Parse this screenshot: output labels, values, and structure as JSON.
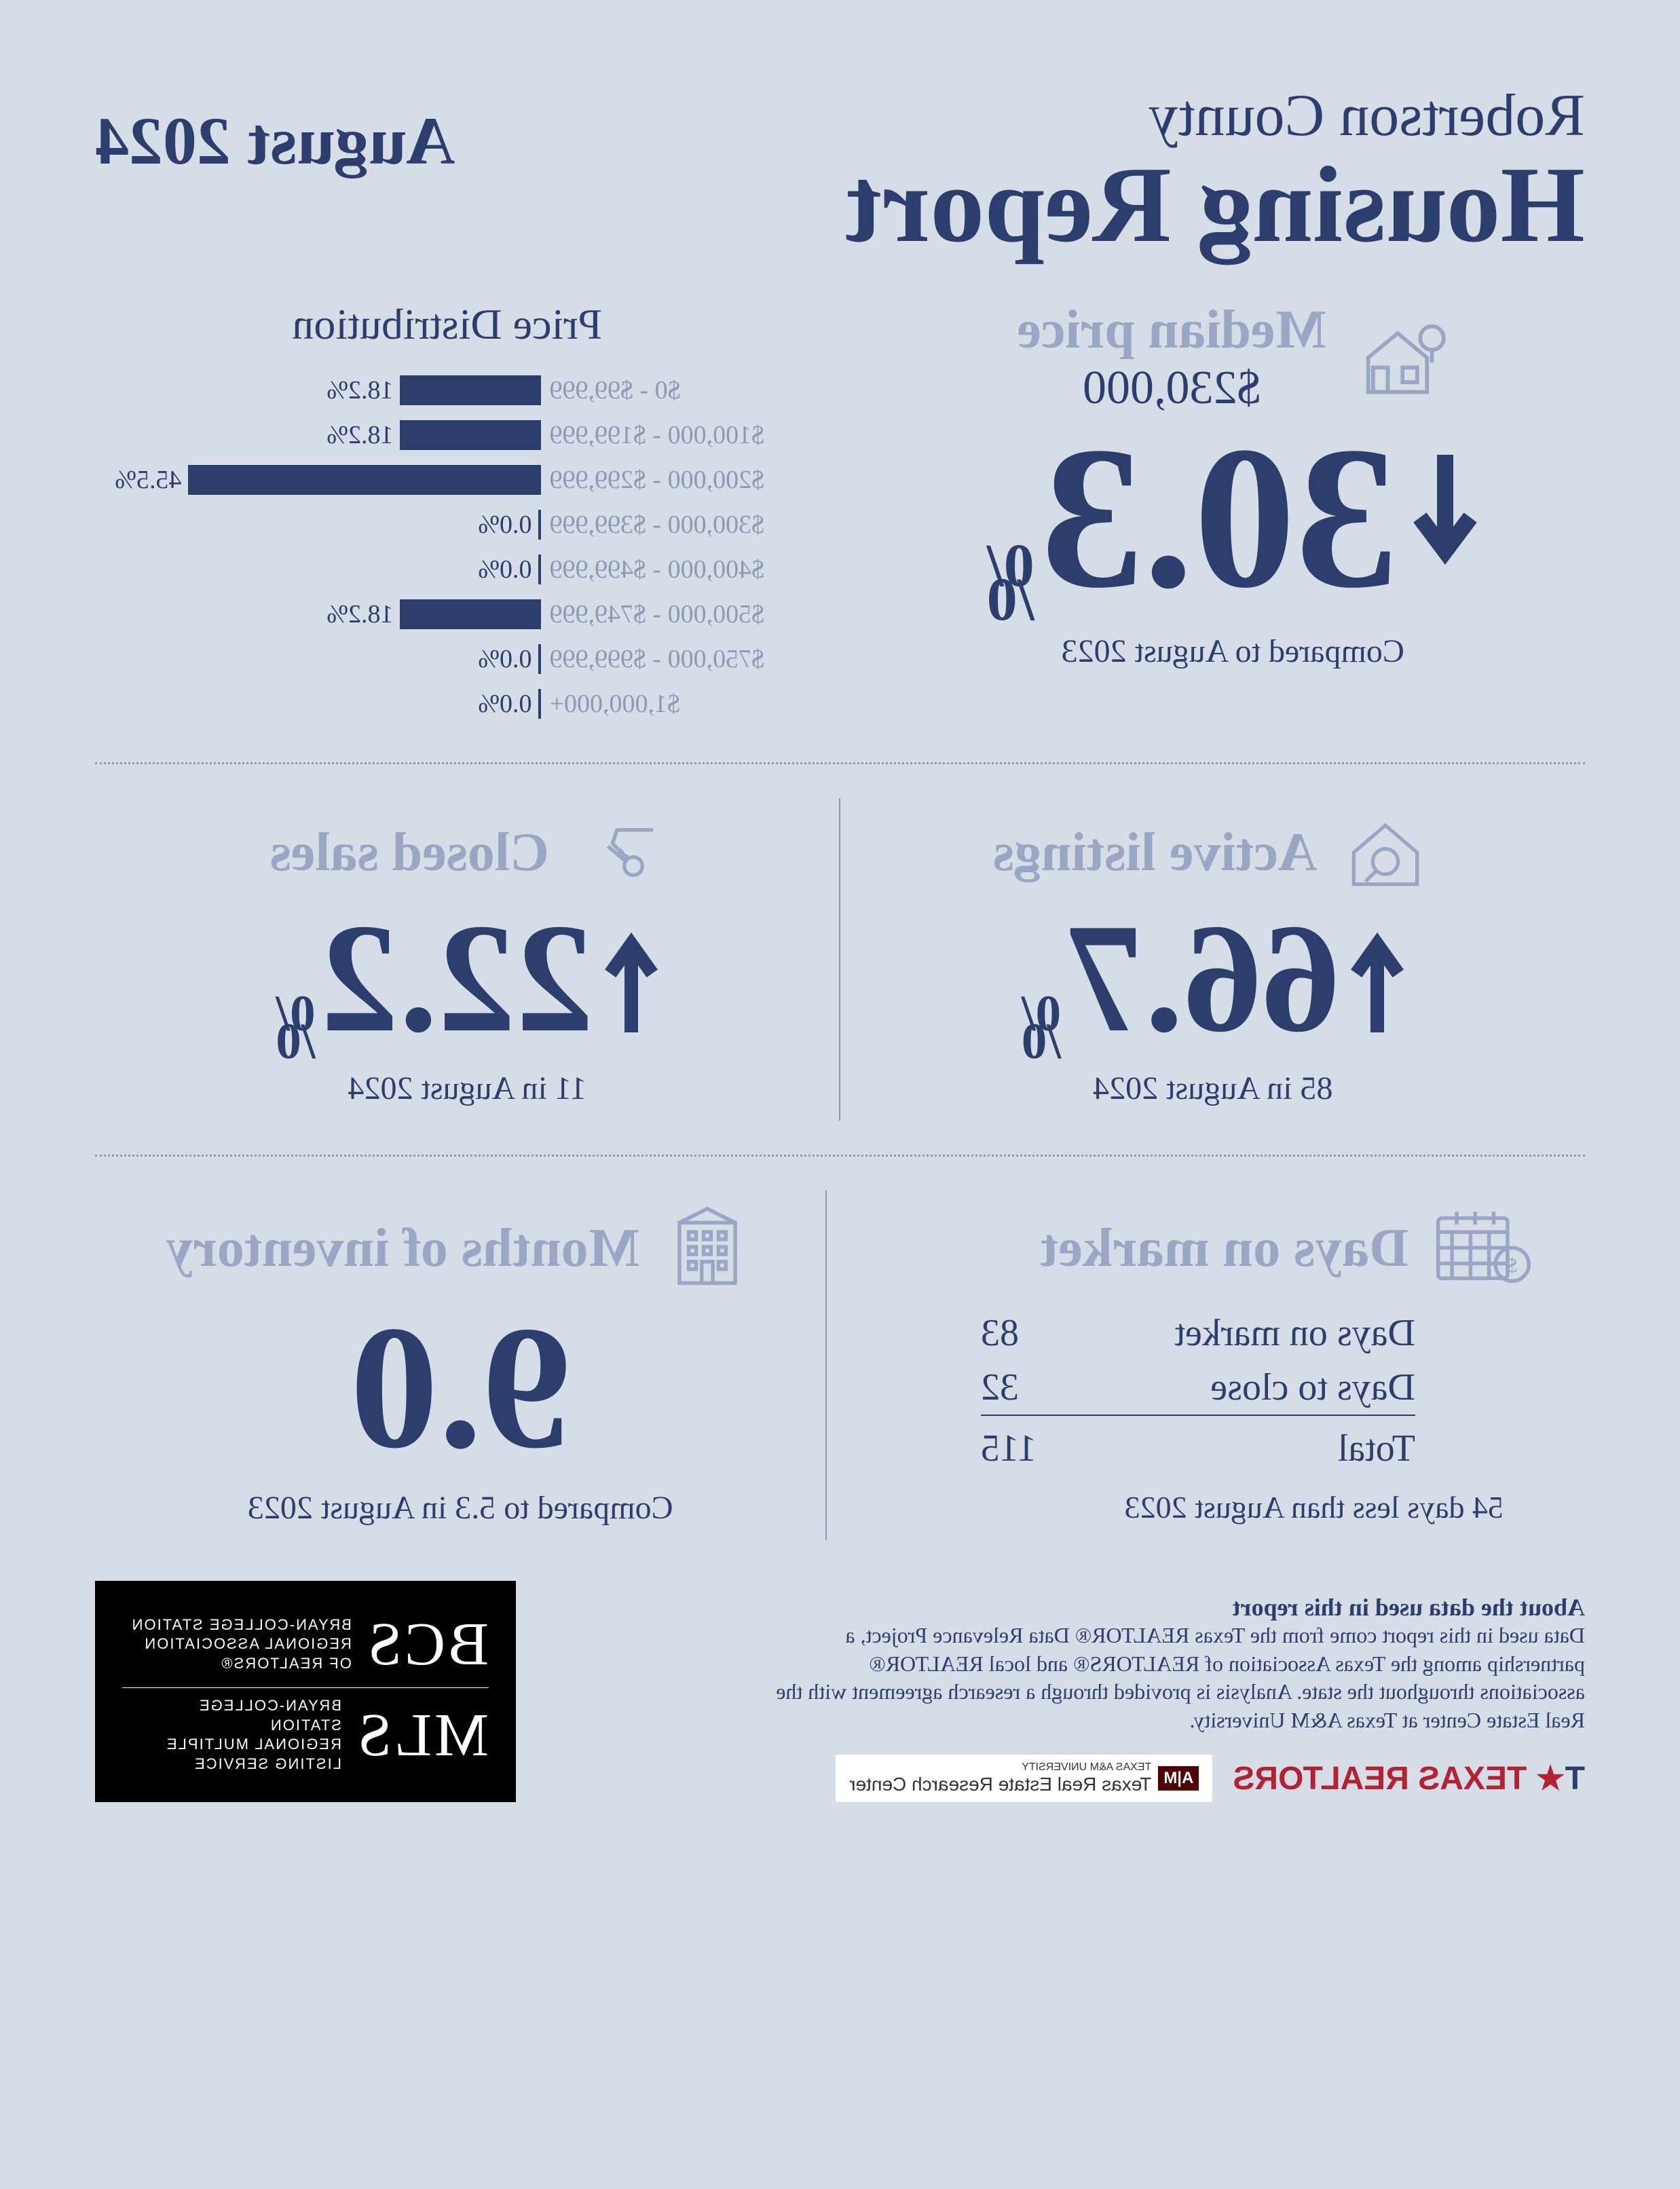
{
  "header": {
    "county": "Robertson County",
    "title": "Housing Report",
    "date": "August 2024"
  },
  "median": {
    "title": "Median price",
    "value": "$230,000",
    "arrow": "down",
    "pct": "30.3",
    "compared": "Compared to August 2023",
    "icon_color": "#9aa7c4"
  },
  "price_distribution": {
    "title": "Price Distribution",
    "bar_color": "#2c3e6e",
    "label_color": "#8c9ab8",
    "value_color": "#2c3e6e",
    "max_pct": 45.5,
    "rows": [
      {
        "label": "$0 - $99,999",
        "pct": 18.2,
        "text": "18.2%"
      },
      {
        "label": "$100,000 - $199,999",
        "pct": 18.2,
        "text": "18.2%"
      },
      {
        "label": "$200,000 - $299,999",
        "pct": 45.5,
        "text": "45.5%"
      },
      {
        "label": "$300,000 - $399,999",
        "pct": 0.0,
        "text": "0.0%"
      },
      {
        "label": "$400,000 - $499,999",
        "pct": 0.0,
        "text": "0.0%"
      },
      {
        "label": "$500,000 - $749,999",
        "pct": 18.2,
        "text": "18.2%"
      },
      {
        "label": "$750,000 - $999,999",
        "pct": 0.0,
        "text": "0.0%"
      },
      {
        "label": "$1,000,000+",
        "pct": 0.0,
        "text": "0.0%"
      }
    ]
  },
  "active_listings": {
    "title": "Active listings",
    "arrow": "up",
    "pct": "66.7",
    "note": "85 in August 2024"
  },
  "closed_sales": {
    "title": "Closed sales",
    "arrow": "up",
    "pct": "22.2",
    "note": "11 in August 2024"
  },
  "days_on_market": {
    "title": "Days on market",
    "rows": [
      {
        "label": "Days on market",
        "val": "83"
      },
      {
        "label": "Days to close",
        "val": "32"
      }
    ],
    "total_label": "Total",
    "total_val": "115",
    "note": "54 days less than August 2023"
  },
  "months_inventory": {
    "title": "Months of inventory",
    "val": "9.0",
    "note": "Compared to 5.3 in August 2023"
  },
  "footer": {
    "about_title": "About the data used in this report",
    "about_body": "Data used in this report come from the Texas REALTOR® Data Relevance Project, a partnership among the Texas Association of REALTORS® and local REALTOR® associations throughout the state. Analysis is provided through a research agreement with the Real Estate Center at Texas A&M University.",
    "tr_logo": "TEXAS REALTORS",
    "trerc_top": "TEXAS A&M UNIVERSITY",
    "trerc": "Texas Real Estate Research Center",
    "bcs1_big": "BCS",
    "bcs1_small": "BRYAN-COLLEGE STATION\nREGIONAL ASSOCIATION\nOF REALTORS®",
    "bcs2_big": "MLS",
    "bcs2_small": "BRYAN-COLLEGE STATION\nREGIONAL MULTIPLE\nLISTING SERVICE"
  },
  "colors": {
    "background": "#d7dde7",
    "primary": "#2c3e6e",
    "muted": "#9aa7c4"
  }
}
